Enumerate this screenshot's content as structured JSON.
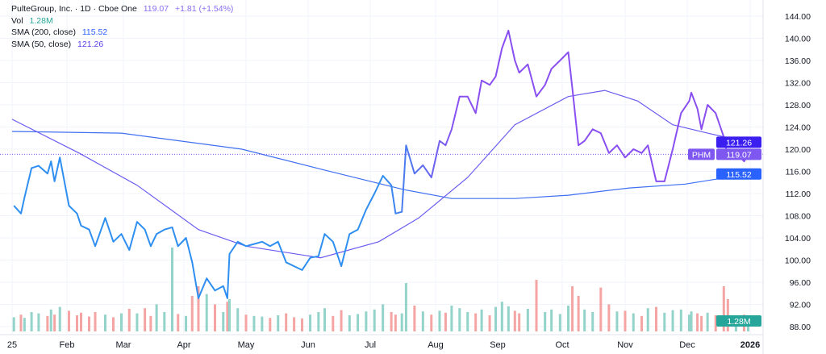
{
  "legend": {
    "title": "PulteGroup, Inc. · 1D · Cboe One",
    "price": "119.07",
    "change": "+1.81 (+1.54%)",
    "vol_label": "Vol",
    "vol_value": "1.28M",
    "sma200_label": "SMA (200, close)",
    "sma200_value": "115.52",
    "sma50_label": "SMA (50, close)",
    "sma50_value": "121.26"
  },
  "tags": {
    "symbol": "PHM",
    "price": "119.07",
    "sma50": "121.26",
    "sma200": "115.52",
    "volume": "1.28M"
  },
  "colors": {
    "price_early": "#2f8ff0",
    "price_late": "#8a4ff0",
    "sma50": "#6a5cf0",
    "sma200": "#3f6ff2",
    "vol_up": "#93d3c9",
    "vol_down": "#f4a5a3",
    "tag_price": "#7e57f0",
    "tag_sma50": "#3a1ff0",
    "tag_sma200": "#2962ff",
    "tag_vol": "#26a69a",
    "legend_price": "#8a6cf0",
    "legend_vol": "#26a69a",
    "legend_sma200": "#2962ff",
    "legend_sma50": "#5b3cf0"
  },
  "chart_data": {
    "type": "line",
    "ylim": [
      88,
      144
    ],
    "y_ticks": [
      "144.00",
      "140.00",
      "136.00",
      "132.00",
      "128.00",
      "124.00",
      "120.00",
      "116.00",
      "112.00",
      "108.00",
      "104.00",
      "100.00",
      "96.00",
      "92.00",
      "88.00"
    ],
    "x_ticks": [
      "25",
      "Feb",
      "Mar",
      "Apr",
      "May",
      "Jun",
      "Jul",
      "Aug",
      "Sep",
      "Oct",
      "Nov",
      "Dec",
      "2026"
    ],
    "price": [
      [
        "2025-01-02",
        109.8
      ],
      [
        "2025-01-06",
        108.4
      ],
      [
        "2025-01-08",
        111.3
      ],
      [
        "2025-01-12",
        116.6
      ],
      [
        "2025-01-16",
        117.0
      ],
      [
        "2025-01-21",
        115.6
      ],
      [
        "2025-01-23",
        117.8
      ],
      [
        "2025-01-25",
        114.2
      ],
      [
        "2025-01-28",
        118.5
      ],
      [
        "2025-02-02",
        109.8
      ],
      [
        "2025-02-06",
        108.4
      ],
      [
        "2025-02-08",
        106.2
      ],
      [
        "2025-02-12",
        105.5
      ],
      [
        "2025-02-15",
        102.5
      ],
      [
        "2025-02-20",
        107.6
      ],
      [
        "2025-02-24",
        103.3
      ],
      [
        "2025-02-28",
        104.7
      ],
      [
        "2025-03-04",
        101.8
      ],
      [
        "2025-03-08",
        106.9
      ],
      [
        "2025-03-12",
        105.5
      ],
      [
        "2025-03-15",
        102.5
      ],
      [
        "2025-03-18",
        104.7
      ],
      [
        "2025-03-22",
        105.5
      ],
      [
        "2025-03-26",
        105.9
      ],
      [
        "2025-03-29",
        102.5
      ],
      [
        "2025-04-02",
        104.0
      ],
      [
        "2025-04-05",
        99.6
      ],
      [
        "2025-04-08",
        93.1
      ],
      [
        "2025-04-12",
        96.7
      ],
      [
        "2025-04-16",
        94.5
      ],
      [
        "2025-04-20",
        95.3
      ],
      [
        "2025-04-22",
        93.1
      ],
      [
        "2025-04-23",
        101.1
      ],
      [
        "2025-04-27",
        103.3
      ],
      [
        "2025-05-01",
        102.5
      ],
      [
        "2025-05-05",
        102.9
      ],
      [
        "2025-05-09",
        103.3
      ],
      [
        "2025-05-13",
        102.5
      ],
      [
        "2025-05-17",
        103.3
      ],
      [
        "2025-05-21",
        99.6
      ],
      [
        "2025-05-25",
        98.9
      ],
      [
        "2025-05-29",
        98.2
      ],
      [
        "2025-06-02",
        100.4
      ],
      [
        "2025-06-06",
        100.7
      ],
      [
        "2025-06-09",
        104.7
      ],
      [
        "2025-06-13",
        103.3
      ],
      [
        "2025-06-17",
        98.9
      ],
      [
        "2025-06-21",
        104.7
      ],
      [
        "2025-06-25",
        105.5
      ],
      [
        "2025-06-29",
        109.1
      ],
      [
        "2025-07-03",
        112.0
      ],
      [
        "2025-07-07",
        115.2
      ],
      [
        "2025-07-11",
        113.5
      ],
      [
        "2025-07-13",
        108.4
      ],
      [
        "2025-07-16",
        108.7
      ],
      [
        "2025-07-18",
        120.7
      ],
      [
        "2025-07-22",
        115.6
      ],
      [
        "2025-07-26",
        117.1
      ],
      [
        "2025-07-30",
        114.9
      ],
      [
        "2025-08-03",
        121.5
      ],
      [
        "2025-08-06",
        120.7
      ],
      [
        "2025-08-09",
        123.6
      ],
      [
        "2025-08-13",
        129.5
      ],
      [
        "2025-08-17",
        129.5
      ],
      [
        "2025-08-21",
        126.5
      ],
      [
        "2025-08-24",
        132.4
      ],
      [
        "2025-08-28",
        131.6
      ],
      [
        "2025-08-31",
        133.1
      ],
      [
        "2025-09-03",
        138.2
      ],
      [
        "2025-09-06",
        141.4
      ],
      [
        "2025-09-09",
        136.0
      ],
      [
        "2025-09-11",
        133.8
      ],
      [
        "2025-09-15",
        135.3
      ],
      [
        "2025-09-19",
        129.5
      ],
      [
        "2025-09-23",
        131.6
      ],
      [
        "2025-09-26",
        134.5
      ],
      [
        "2025-09-30",
        136.0
      ],
      [
        "2025-10-04",
        137.5
      ],
      [
        "2025-10-06",
        130.9
      ],
      [
        "2025-10-09",
        120.7
      ],
      [
        "2025-10-12",
        121.5
      ],
      [
        "2025-10-16",
        123.6
      ],
      [
        "2025-10-20",
        122.9
      ],
      [
        "2025-10-24",
        119.3
      ],
      [
        "2025-10-28",
        120.7
      ],
      [
        "2025-11-01",
        118.5
      ],
      [
        "2025-11-05",
        120.0
      ],
      [
        "2025-11-09",
        119.3
      ],
      [
        "2025-11-12",
        120.7
      ],
      [
        "2025-11-16",
        114.2
      ],
      [
        "2025-11-20",
        114.2
      ],
      [
        "2025-11-24",
        120.0
      ],
      [
        "2025-11-28",
        126.5
      ],
      [
        "2025-12-02",
        128.7
      ],
      [
        "2025-12-03",
        130.2
      ],
      [
        "2025-12-06",
        127.3
      ],
      [
        "2025-12-08",
        123.6
      ],
      [
        "2025-12-11",
        128.0
      ],
      [
        "2025-12-15",
        126.5
      ],
      [
        "2025-12-19",
        122.2
      ],
      [
        "2025-12-21",
        118.5
      ],
      [
        "2025-12-25",
        119.3
      ],
      [
        "2025-12-29",
        117.8
      ],
      [
        "2025-12-31",
        119.07
      ]
    ],
    "sma50": [
      [
        "2025-01-01",
        125.4
      ],
      [
        "2025-02-07",
        119.3
      ],
      [
        "2025-03-08",
        113.5
      ],
      [
        "2025-04-08",
        105.5
      ],
      [
        "2025-05-01",
        102.5
      ],
      [
        "2025-06-07",
        100.4
      ],
      [
        "2025-07-05",
        103.3
      ],
      [
        "2025-07-24",
        107.6
      ],
      [
        "2025-08-17",
        114.9
      ],
      [
        "2025-09-09",
        124.4
      ],
      [
        "2025-10-04",
        129.5
      ],
      [
        "2025-10-22",
        130.6
      ],
      [
        "2025-11-07",
        128.7
      ],
      [
        "2025-11-24",
        124.4
      ],
      [
        "2025-12-11",
        122.9
      ],
      [
        "2025-12-31",
        121.26
      ]
    ],
    "sma200": [
      [
        "2025-01-01",
        123.2
      ],
      [
        "2025-02-28",
        122.9
      ],
      [
        "2025-04-29",
        120.0
      ],
      [
        "2025-06-07",
        116.4
      ],
      [
        "2025-07-17",
        112.7
      ],
      [
        "2025-08-09",
        111.1
      ],
      [
        "2025-09-09",
        111.1
      ],
      [
        "2025-10-04",
        111.7
      ],
      [
        "2025-11-03",
        113.0
      ],
      [
        "2025-11-30",
        113.7
      ],
      [
        "2025-12-31",
        115.52
      ]
    ],
    "volume_millions": [
      2.2,
      2.6,
      2.1,
      3.0,
      2.8,
      2.4,
      3.4,
      2.6,
      3.8,
      3.2,
      2.5,
      2.9,
      2.3,
      3.0,
      2.6,
      2.2,
      2.8,
      3.5,
      2.8,
      3.6,
      2.4,
      4.2,
      3.0,
      13.0,
      2.7,
      2.4,
      5.5,
      7.0,
      5.8,
      4.2,
      3.0,
      4.6,
      5.0,
      3.6,
      2.6,
      2.4,
      2.3,
      2.1,
      2.5,
      2.8,
      2.2,
      2.0,
      2.6,
      3.0,
      3.6,
      2.4,
      3.3,
      2.5,
      2.7,
      3.1,
      3.4,
      4.2,
      3.0,
      2.6,
      2.8,
      7.5,
      4.0,
      3.1,
      2.6,
      3.2,
      2.9,
      4.0,
      3.6,
      3.0,
      2.8,
      3.4,
      2.5,
      3.8,
      4.6,
      3.9,
      3.2,
      2.8,
      3.5,
      8.0,
      3.0,
      3.4,
      2.7,
      4.0,
      7.0,
      5.5,
      3.4,
      3.0,
      6.8,
      4.2,
      3.1,
      3.2,
      2.8,
      2.4,
      3.6,
      3.8,
      2.9,
      3.3,
      3.4,
      2.6,
      3.1,
      2.8,
      2.4,
      2.9,
      2.5,
      7.0,
      5.0,
      2.4,
      2.6,
      1.28
    ]
  }
}
